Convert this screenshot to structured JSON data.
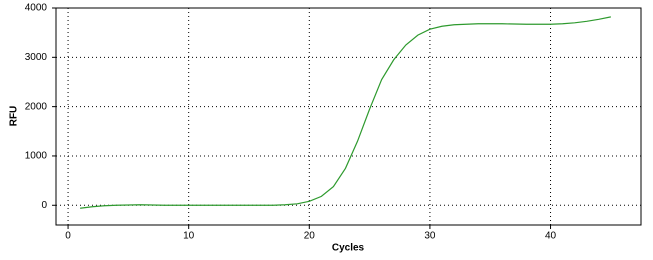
{
  "chart_data": {
    "type": "line",
    "x_label": "Cycles",
    "y_label": "RFU",
    "x": [
      1,
      2,
      3,
      4,
      5,
      6,
      7,
      8,
      9,
      10,
      11,
      12,
      13,
      14,
      15,
      16,
      17,
      18,
      19,
      20,
      21,
      22,
      23,
      24,
      25,
      26,
      27,
      28,
      29,
      30,
      31,
      32,
      33,
      34,
      35,
      36,
      37,
      38,
      39,
      40,
      41,
      42,
      43,
      44,
      45
    ],
    "series": [
      {
        "color": "#2e9a2e",
        "values": [
          -60,
          -30,
          -10,
          0,
          5,
          10,
          5,
          0,
          0,
          0,
          0,
          0,
          0,
          0,
          0,
          0,
          0,
          10,
          30,
          80,
          180,
          380,
          750,
          1300,
          1950,
          2550,
          2950,
          3250,
          3450,
          3570,
          3630,
          3660,
          3670,
          3680,
          3680,
          3680,
          3675,
          3670,
          3670,
          3670,
          3680,
          3700,
          3730,
          3770,
          3820
        ]
      }
    ],
    "xlim": [
      -1,
      47.5
    ],
    "ylim": [
      -400,
      4000
    ],
    "xticks": [
      0,
      10,
      20,
      30,
      40
    ],
    "yticks": [
      0,
      1000,
      2000,
      3000,
      4000
    ],
    "grid": true
  }
}
